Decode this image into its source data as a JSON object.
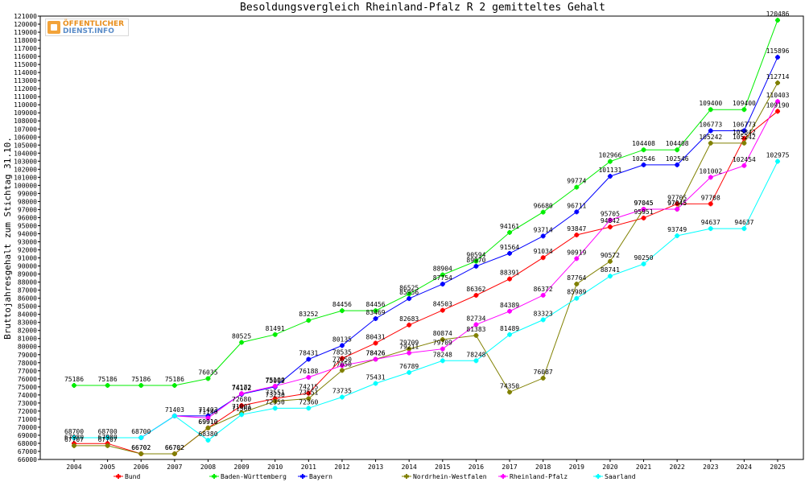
{
  "chart_data": {
    "type": "line",
    "title": "Besoldungsvergleich Rheinland-Pfalz R 2 gemitteltes Gehalt",
    "ylabel": "Bruttojahresgehalt zum Stichtag 31.10.",
    "xlabel": "",
    "ylim": [
      66000,
      121000
    ],
    "ystep": 1000,
    "grid": false,
    "legend_position": "bottom",
    "x": [
      "2004",
      "2005",
      "2006",
      "2007",
      "2008",
      "2009",
      "2010",
      "2011",
      "2012",
      "2013",
      "2014",
      "2015",
      "2016",
      "2017",
      "2018",
      "2019",
      "2020",
      "2021",
      "2022",
      "2023",
      "2024",
      "2025"
    ],
    "series": [
      {
        "name": "Bund",
        "color": "#ff0000",
        "values": [
          67980,
          67980,
          66702,
          66702,
          69910,
          72680,
          73551,
          74215,
          78535,
          80431,
          82683,
          84503,
          86362,
          88391,
          91034,
          93847,
          94842,
          95951,
          97705,
          97708,
          105842,
          109190
        ]
      },
      {
        "name": "Baden-Württemberg",
        "color": "#00ee00",
        "values": [
          75186,
          75186,
          75186,
          75186,
          76035,
          80525,
          81491,
          83252,
          84456,
          84456,
          86525,
          88904,
          90594,
          94161,
          96680,
          99774,
          102966,
          104408,
          104408,
          109400,
          109400,
          120486
        ]
      },
      {
        "name": "Bayern",
        "color": "#0000ff",
        "values": [
          68700,
          68700,
          68700,
          71403,
          71403,
          74102,
          75002,
          78431,
          80135,
          83469,
          85956,
          87754,
          89970,
          91564,
          93714,
          96711,
          101131,
          102546,
          102546,
          106773,
          106773,
          115896
        ]
      },
      {
        "name": "Nordrhein-Westfalen",
        "color": "#808000",
        "values": [
          67707,
          67707,
          66702,
          66702,
          69910,
          71801,
          73230,
          73551,
          77050,
          78426,
          79709,
          80874,
          81383,
          74350,
          76087,
          87764,
          90572,
          97045,
          97045,
          105242,
          105242,
          112714
        ]
      },
      {
        "name": "Rheinland-Pfalz",
        "color": "#ff00ff",
        "values": [
          68700,
          68700,
          68700,
          71403,
          71140,
          74172,
          75100,
          76188,
          77650,
          78426,
          79211,
          79709,
          82734,
          84389,
          86372,
          90919,
          95705,
          97045,
          97045,
          101002,
          102454,
          110403
        ]
      },
      {
        "name": "Saarland",
        "color": "#00ffff",
        "values": [
          68700,
          68700,
          68700,
          71403,
          68380,
          71560,
          72350,
          72360,
          73735,
          75431,
          76789,
          78248,
          78248,
          81489,
          83323,
          85989,
          88741,
          90250,
          93749,
          94637,
          94637,
          102975
        ]
      }
    ],
    "data_labels": [
      {
        "series": 0,
        "labels": [
          "67980",
          "67980",
          "66702",
          "66702",
          "69910",
          "72680",
          "73551",
          "74215",
          "78535",
          "80431",
          "82683",
          "84503",
          "86362",
          "88391",
          "91034",
          "93847",
          "94842",
          "95951",
          "97705",
          "97708",
          "105842",
          "109190"
        ]
      },
      {
        "series": 1,
        "labels": [
          "75186",
          "75186",
          "75186",
          "75186",
          "76035",
          "80525",
          "81491",
          "83252",
          "84456",
          "84456",
          "86525",
          "88904",
          "90594",
          "94161",
          "96680",
          "99774",
          "102966",
          "104408",
          "104408",
          "109400",
          "109400",
          "120486"
        ]
      },
      {
        "series": 2,
        "labels": [
          "68700",
          "68700",
          "68700",
          "71403",
          "71403",
          "74102",
          "75002",
          "78431",
          "80135",
          "83469",
          "85956",
          "87754",
          "89970",
          "91564",
          "93714",
          "96711",
          "101131",
          "102546",
          "102546",
          "106773",
          "106773",
          "115896"
        ]
      },
      {
        "series": 3,
        "labels": [
          "67707",
          "67707",
          "66702",
          "66702",
          "69910",
          "71801",
          "73230",
          "73551",
          "77050",
          "78426",
          "79709",
          "80874",
          "81383",
          "74350",
          "76087",
          "87764",
          "90572",
          "97045",
          "97045",
          "105242",
          "105242",
          "112714"
        ]
      },
      {
        "series": 4,
        "labels": [
          "",
          "",
          "",
          "",
          "71140",
          "74172",
          "75100",
          "76188",
          "77650",
          "78426",
          "79211",
          "79709",
          "82734",
          "84389",
          "86372",
          "90919",
          "95705",
          "97045",
          "97045",
          "101002",
          "102454",
          "110403"
        ]
      },
      {
        "series": 5,
        "labels": [
          "",
          "",
          "",
          "",
          "68380",
          "71560",
          "72350",
          "72360",
          "73735",
          "75431",
          "76789",
          "78248",
          "78248",
          "81489",
          "83323",
          "85989",
          "88741",
          "90250",
          "93749",
          "94637",
          "94637",
          "102975"
        ]
      }
    ]
  },
  "logo": {
    "line1": "ÖFFENTLICHER",
    "line2": "DIENST.INFO"
  }
}
